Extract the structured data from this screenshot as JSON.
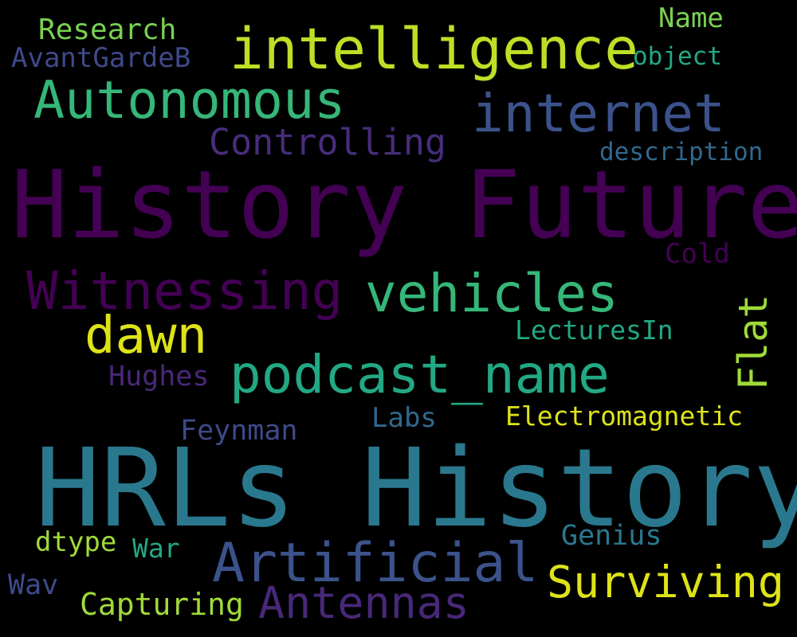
{
  "words": {
    "history_future": {
      "text": "History Future",
      "color": "#440154"
    },
    "hrls_history": {
      "text": "HRLs History",
      "color": "#2a788e"
    },
    "intelligence": {
      "text": "intelligence",
      "color": "#bddf26"
    },
    "autonomous": {
      "text": "Autonomous",
      "color": "#35b779"
    },
    "internet": {
      "text": "internet",
      "color": "#3b528b"
    },
    "controlling": {
      "text": "Controlling",
      "color": "#472d7b"
    },
    "witnessing": {
      "text": "Witnessing",
      "color": "#440154"
    },
    "vehicles": {
      "text": "vehicles",
      "color": "#35b779"
    },
    "dawn": {
      "text": "dawn",
      "color": "#dde318"
    },
    "podcast_name": {
      "text": "podcast_name",
      "color": "#22a884"
    },
    "artificial": {
      "text": "Artificial",
      "color": "#3b528b"
    },
    "surviving": {
      "text": "Surviving",
      "color": "#dde318"
    },
    "antennas": {
      "text": "Antennas",
      "color": "#482878"
    },
    "research": {
      "text": "Research",
      "color": "#7ad151"
    },
    "name": {
      "text": "Name",
      "color": "#7ad151"
    },
    "avantgardeb": {
      "text": "AvantGardeB",
      "color": "#3e4a89"
    },
    "object": {
      "text": "object",
      "color": "#22a884"
    },
    "description": {
      "text": "description",
      "color": "#31688e"
    },
    "cold": {
      "text": "Cold",
      "color": "#440154"
    },
    "flat": {
      "text": "Flat",
      "color": "#a0da39"
    },
    "lecturesin": {
      "text": "LecturesIn",
      "color": "#22a884"
    },
    "hughes": {
      "text": "Hughes",
      "color": "#482878"
    },
    "electromagnetic": {
      "text": "Electromagnetic",
      "color": "#dde318"
    },
    "labs": {
      "text": "Labs",
      "color": "#31688e"
    },
    "feynman": {
      "text": "Feynman",
      "color": "#3e4a89"
    },
    "genius": {
      "text": "Genius",
      "color": "#2a788e"
    },
    "dtype": {
      "text": "dtype",
      "color": "#a0da39"
    },
    "war": {
      "text": "War",
      "color": "#22a884"
    },
    "wav": {
      "text": "Wav",
      "color": "#3e4a89"
    },
    "capturing": {
      "text": "Capturing",
      "color": "#a0da39"
    }
  }
}
